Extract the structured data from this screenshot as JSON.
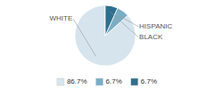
{
  "chart_data": {
    "type": "pie",
    "categories": [
      "WHITE",
      "HISPANIC",
      "BLACK"
    ],
    "values": [
      86.7,
      6.7,
      6.7
    ],
    "value_labels": [
      "86.7%",
      "6.7%",
      "6.7%"
    ],
    "colors": [
      "#d6e4ee",
      "#7aaec4",
      "#2e6f8e"
    ],
    "legend": "bottom"
  }
}
